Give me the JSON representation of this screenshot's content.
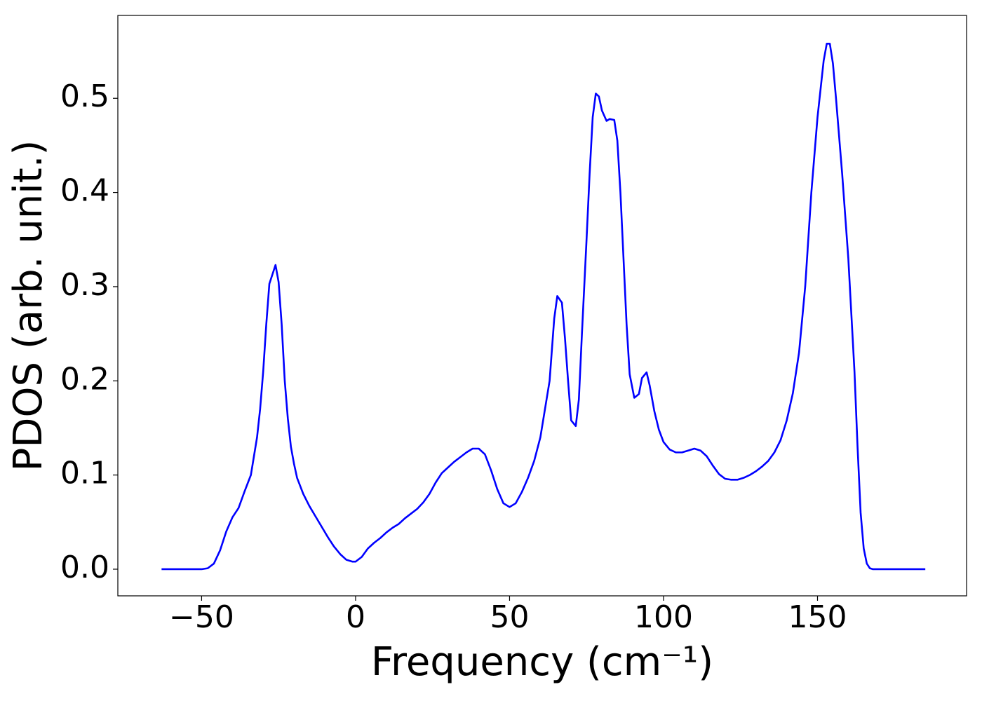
{
  "chart_data": {
    "type": "line",
    "xlabel": "Frequency (cm⁻¹)",
    "ylabel": "PDOS (arb. unit.)",
    "x": [
      -63,
      -50,
      -48,
      -46,
      -44,
      -42,
      -40,
      -38,
      -36,
      -34,
      -33,
      -32,
      -31,
      -30,
      -29,
      -28,
      -26,
      -25,
      -24,
      -23,
      -22,
      -21,
      -20,
      -19,
      -17,
      -15,
      -13,
      -11,
      -9,
      -7,
      -5,
      -3,
      -1,
      0,
      2,
      4,
      6,
      8,
      10,
      12,
      14,
      16,
      18,
      20,
      22,
      24,
      26,
      28,
      30,
      32,
      34,
      36,
      38,
      40,
      42,
      44,
      46,
      48,
      50,
      52,
      54,
      56,
      58,
      60,
      62,
      63,
      64.5,
      65.5,
      67,
      68,
      69,
      70,
      71.5,
      72.5,
      73.5,
      75,
      76,
      77,
      78,
      79,
      80,
      81.5,
      82.5,
      84,
      85,
      86,
      87,
      88,
      89,
      90.5,
      92,
      93,
      94.5,
      95.5,
      97,
      98.5,
      100,
      102,
      104,
      106,
      108,
      110,
      112,
      114,
      116,
      118,
      120,
      122,
      124,
      126,
      128,
      130,
      132,
      134,
      136,
      138,
      140,
      142,
      144,
      146,
      148,
      150,
      151,
      152,
      153,
      154,
      155,
      156,
      158,
      160,
      162,
      163,
      164,
      165,
      166,
      167,
      168,
      185
    ],
    "series": [
      {
        "name": "PDOS",
        "color": "#0000ff",
        "values": [
          0,
          0,
          0.001,
          0.006,
          0.02,
          0.04,
          0.055,
          0.065,
          0.083,
          0.1,
          0.12,
          0.14,
          0.17,
          0.21,
          0.26,
          0.303,
          0.323,
          0.305,
          0.26,
          0.2,
          0.16,
          0.13,
          0.112,
          0.097,
          0.08,
          0.067,
          0.056,
          0.045,
          0.034,
          0.024,
          0.016,
          0.01,
          0.008,
          0.008,
          0.013,
          0.022,
          0.028,
          0.033,
          0.039,
          0.044,
          0.048,
          0.054,
          0.059,
          0.064,
          0.071,
          0.08,
          0.092,
          0.102,
          0.108,
          0.114,
          0.119,
          0.124,
          0.128,
          0.128,
          0.122,
          0.105,
          0.085,
          0.07,
          0.066,
          0.07,
          0.082,
          0.097,
          0.115,
          0.14,
          0.18,
          0.2,
          0.266,
          0.29,
          0.283,
          0.245,
          0.2,
          0.158,
          0.152,
          0.18,
          0.25,
          0.35,
          0.42,
          0.48,
          0.505,
          0.502,
          0.487,
          0.476,
          0.478,
          0.477,
          0.455,
          0.4,
          0.33,
          0.26,
          0.207,
          0.182,
          0.186,
          0.203,
          0.209,
          0.195,
          0.168,
          0.148,
          0.135,
          0.127,
          0.124,
          0.124,
          0.126,
          0.128,
          0.126,
          0.12,
          0.11,
          0.101,
          0.096,
          0.095,
          0.095,
          0.097,
          0.1,
          0.104,
          0.109,
          0.115,
          0.124,
          0.137,
          0.158,
          0.187,
          0.23,
          0.3,
          0.4,
          0.48,
          0.51,
          0.54,
          0.558,
          0.558,
          0.537,
          0.5,
          0.42,
          0.33,
          0.21,
          0.13,
          0.06,
          0.022,
          0.006,
          0.001,
          0,
          0
        ]
      }
    ],
    "xlim": [
      -77.2,
      198.4
    ],
    "ylim": [
      -0.0283,
      0.588
    ],
    "xticks": [
      {
        "value": -50,
        "label": "−50"
      },
      0,
      50,
      100,
      150
    ],
    "yticks": [
      {
        "value": 0,
        "label": "0.0"
      },
      0.1,
      0.2,
      0.3,
      0.4,
      0.5
    ]
  }
}
